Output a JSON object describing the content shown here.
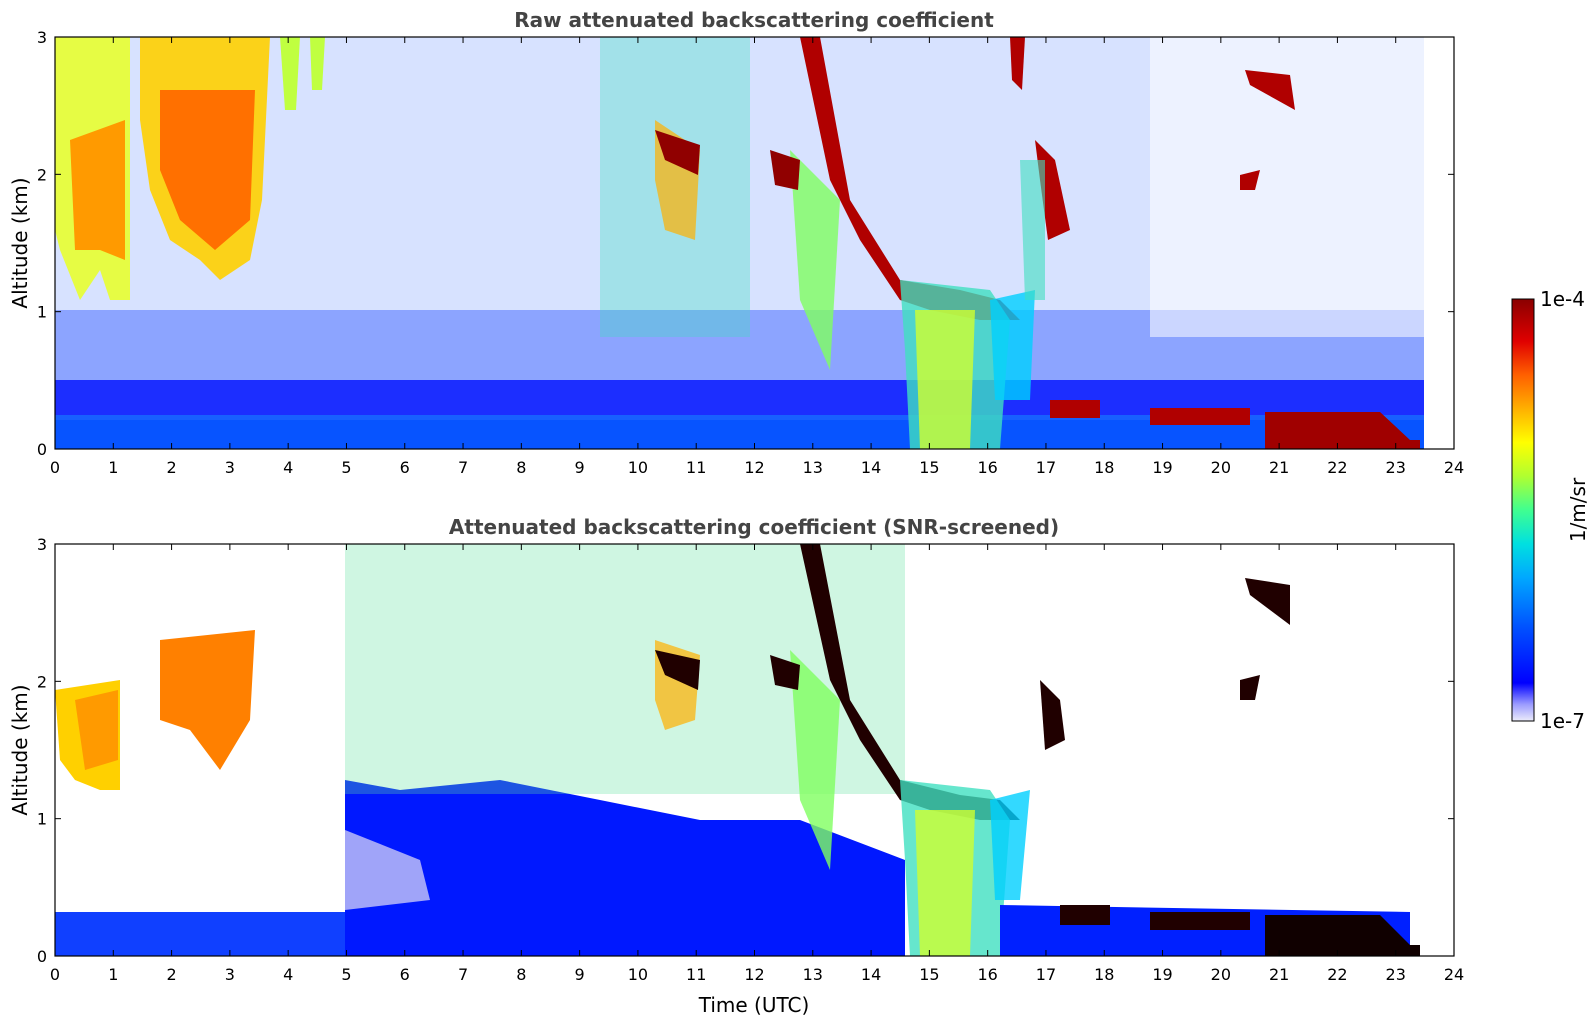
{
  "chart_data": [
    {
      "type": "heatmap",
      "title": "Raw attenuated backscattering coefficient",
      "xlabel": "",
      "ylabel": "Altitude (km)",
      "xlim": [
        0,
        24
      ],
      "ylim": [
        0,
        3
      ],
      "x_ticks": [
        0,
        1,
        2,
        3,
        4,
        5,
        6,
        7,
        8,
        9,
        10,
        11,
        12,
        13,
        14,
        15,
        16,
        17,
        18,
        19,
        20,
        21,
        22,
        23,
        24
      ],
      "y_ticks": [
        0,
        1,
        2,
        3
      ],
      "x_tick_labels": [
        "0",
        "1",
        "2",
        "3",
        "4",
        "5",
        "6",
        "7",
        "8",
        "9",
        "10",
        "11",
        "12",
        "13",
        "14",
        "15",
        "16",
        "17",
        "18",
        "19",
        "20",
        "21",
        "22",
        "23",
        "24"
      ],
      "y_tick_labels": [
        "0",
        "1",
        "2",
        "3"
      ],
      "grid": false
    },
    {
      "type": "heatmap",
      "title": "Attenuated backscattering coefficient (SNR-screened)",
      "xlabel": "Time (UTC)",
      "ylabel": "Altitude (km)",
      "xlim": [
        0,
        24
      ],
      "ylim": [
        0,
        3
      ],
      "x_ticks": [
        0,
        1,
        2,
        3,
        4,
        5,
        6,
        7,
        8,
        9,
        10,
        11,
        12,
        13,
        14,
        15,
        16,
        17,
        18,
        19,
        20,
        21,
        22,
        23,
        24
      ],
      "y_ticks": [
        0,
        1,
        2,
        3
      ],
      "x_tick_labels": [
        "0",
        "1",
        "2",
        "3",
        "4",
        "5",
        "6",
        "7",
        "8",
        "9",
        "10",
        "11",
        "12",
        "13",
        "14",
        "15",
        "16",
        "17",
        "18",
        "19",
        "20",
        "21",
        "22",
        "23",
        "24"
      ],
      "y_tick_labels": [
        "0",
        "1",
        "2",
        "3"
      ],
      "grid": false
    }
  ],
  "colorbar": {
    "label": "1/m/sr",
    "min_label": "1e-7",
    "max_label": "1e-4",
    "scale": "log",
    "range": [
      1e-07,
      0.0001
    ],
    "colormap": [
      "#e8e8f8",
      "#6a6aff",
      "#0000ff",
      "#0060ff",
      "#00b0ff",
      "#00e0e0",
      "#40ff90",
      "#c0ff30",
      "#ffff00",
      "#ffb000",
      "#ff6000",
      "#e00000",
      "#900000",
      "#000000"
    ]
  }
}
